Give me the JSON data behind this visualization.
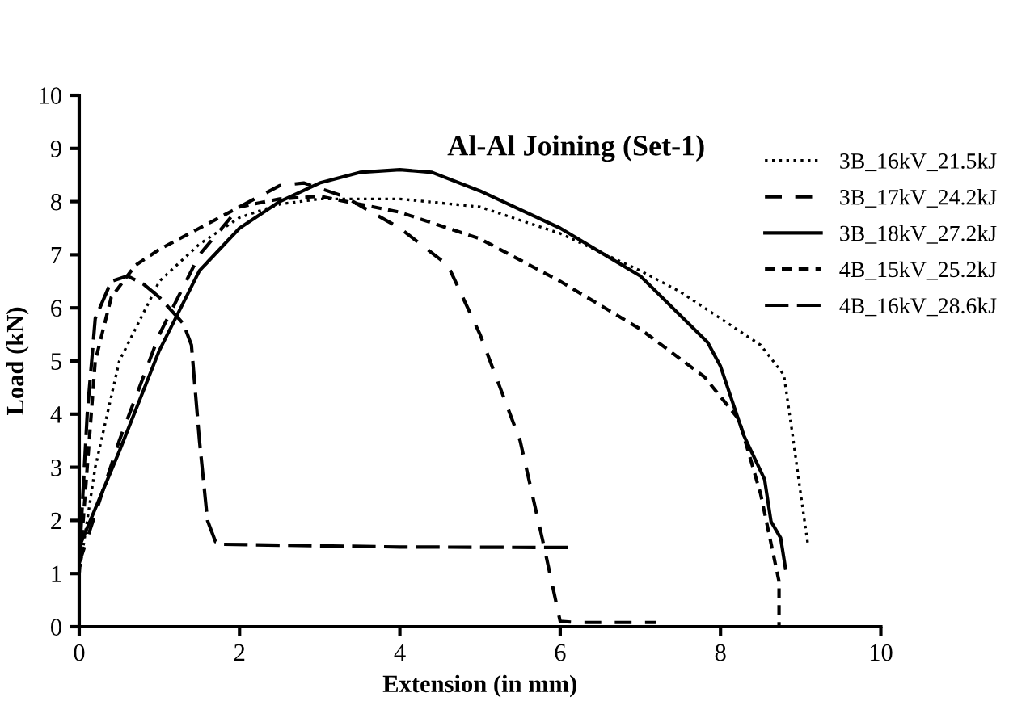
{
  "chart_data": {
    "type": "line",
    "title": "Al-Al Joining (Set-1)",
    "xlabel": "Extension (in mm)",
    "ylabel": "Load (kN)",
    "xlim": [
      0,
      10
    ],
    "ylim": [
      0,
      10
    ],
    "xticks": [
      0,
      2,
      4,
      6,
      8,
      10
    ],
    "yticks": [
      0,
      1,
      2,
      3,
      4,
      5,
      6,
      7,
      8,
      9,
      10
    ],
    "grid": false,
    "legend": "top right",
    "marker": "none",
    "series": [
      {
        "name": "3B_16kV_21.5kJ",
        "color": "#000000",
        "line_style": "dotted",
        "x": [
          0,
          0.2,
          0.5,
          1,
          1.5,
          2,
          2.5,
          3,
          3.5,
          4,
          5,
          6,
          7,
          7.5,
          8,
          8.5,
          8.79,
          8.9,
          9.0,
          9.09
        ],
        "values": [
          1.0,
          3.0,
          5.0,
          6.5,
          7.2,
          7.7,
          7.95,
          8.05,
          8.05,
          8.05,
          7.9,
          7.4,
          6.7,
          6.3,
          5.8,
          5.3,
          4.74,
          3.6,
          2.5,
          1.55
        ]
      },
      {
        "name": "3B_17kV_24.2kJ",
        "color": "#000000",
        "line_style": "dashed",
        "x": [
          0,
          0.5,
          1,
          1.5,
          2,
          2.5,
          2.8,
          3.3,
          4,
          4.6,
          5,
          5.5,
          5.8,
          6.0,
          6.2,
          7.2
        ],
        "values": [
          1.2,
          3.5,
          5.5,
          7.0,
          7.9,
          8.3,
          8.35,
          8.1,
          7.5,
          6.8,
          5.5,
          3.5,
          1.5,
          0.1,
          0.08,
          0.08
        ]
      },
      {
        "name": "3B_18kV_27.2kJ",
        "color": "#000000",
        "line_style": "solid",
        "x": [
          0,
          0.5,
          1,
          1.5,
          2,
          2.5,
          3,
          3.5,
          4,
          4.4,
          5,
          6,
          7,
          7.84,
          8.0,
          8.29,
          8.55,
          8.63,
          8.75,
          8.81
        ],
        "values": [
          1.5,
          3.3,
          5.2,
          6.7,
          7.5,
          8.0,
          8.35,
          8.55,
          8.6,
          8.55,
          8.2,
          7.5,
          6.6,
          5.35,
          4.9,
          3.6,
          2.77,
          1.98,
          1.67,
          1.1
        ]
      },
      {
        "name": "4B_15kV_25.2kJ",
        "color": "#000000",
        "line_style": "dashed",
        "x": [
          0,
          0.1,
          0.2,
          0.4,
          0.7,
          1,
          1.5,
          2,
          2.5,
          3,
          4,
          5,
          6,
          7,
          7.8,
          8.23,
          8.5,
          8.73,
          8.73
        ],
        "values": [
          1.0,
          3.0,
          5.0,
          6.2,
          6.8,
          7.1,
          7.5,
          7.9,
          8.05,
          8.1,
          7.8,
          7.3,
          6.5,
          5.6,
          4.7,
          3.9,
          2.5,
          0.85,
          0
        ]
      },
      {
        "name": "4B_16kV_28.6kJ",
        "color": "#000000",
        "line_style": "dashed",
        "x": [
          0,
          0.1,
          0.2,
          0.4,
          0.6,
          0.8,
          1.0,
          1.3,
          1.4,
          1.5,
          1.6,
          1.7,
          1.8,
          4,
          6.13
        ],
        "values": [
          1.2,
          4.0,
          5.8,
          6.5,
          6.6,
          6.45,
          6.2,
          5.7,
          5.3,
          3.5,
          2.0,
          1.6,
          1.55,
          1.5,
          1.49
        ]
      }
    ]
  }
}
